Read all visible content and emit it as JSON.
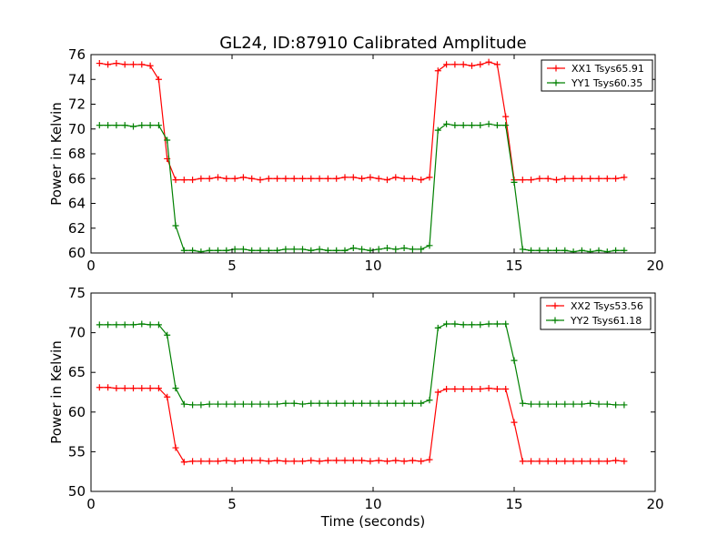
{
  "figure": {
    "title": "GL24, ID:87910 Calibrated Amplitude"
  },
  "chart_data": [
    {
      "type": "line",
      "title": "GL24, ID:87910 Calibrated Amplitude",
      "xlabel": "",
      "ylabel": "Power in Kelvin",
      "xlim": [
        0,
        20
      ],
      "ylim": [
        60,
        76
      ],
      "xticks": [
        0,
        5,
        10,
        15,
        20
      ],
      "yticks": [
        60,
        62,
        64,
        66,
        68,
        70,
        72,
        74,
        76
      ],
      "grid": false,
      "legend_position": "top-right",
      "marker": "+",
      "x": [
        0.3,
        0.6,
        0.9,
        1.2,
        1.5,
        1.8,
        2.1,
        2.4,
        2.7,
        3.0,
        3.3,
        3.6,
        3.9,
        4.2,
        4.5,
        4.8,
        5.1,
        5.4,
        5.7,
        6.0,
        6.3,
        6.6,
        6.9,
        7.2,
        7.5,
        7.8,
        8.1,
        8.4,
        8.7,
        9.0,
        9.3,
        9.6,
        9.9,
        10.2,
        10.5,
        10.8,
        11.1,
        11.4,
        11.7,
        12.0,
        12.3,
        12.6,
        12.9,
        13.2,
        13.5,
        13.8,
        14.1,
        14.4,
        14.7,
        15.0,
        15.3,
        15.6,
        15.9,
        16.2,
        16.5,
        16.8,
        17.1,
        17.4,
        17.7,
        18.0,
        18.3,
        18.6,
        18.9
      ],
      "series": [
        {
          "name": "XX1 Tsys65.91",
          "color": "#ff0000",
          "values": [
            75.3,
            75.2,
            75.3,
            75.2,
            75.2,
            75.2,
            75.1,
            74.0,
            67.6,
            65.9,
            65.9,
            65.9,
            66.0,
            66.0,
            66.1,
            66.0,
            66.0,
            66.1,
            66.0,
            65.9,
            66.0,
            66.0,
            66.0,
            66.0,
            66.0,
            66.0,
            66.0,
            66.0,
            66.0,
            66.1,
            66.1,
            66.0,
            66.1,
            66.0,
            65.9,
            66.1,
            66.0,
            66.0,
            65.9,
            66.1,
            74.7,
            75.2,
            75.2,
            75.2,
            75.1,
            75.2,
            75.4,
            75.2,
            71.0,
            65.9,
            65.9,
            65.9,
            66.0,
            66.0,
            65.9,
            66.0,
            66.0,
            66.0,
            66.0,
            66.0,
            66.0,
            66.0,
            66.1
          ]
        },
        {
          "name": "YY1 Tsys60.35",
          "color": "#008000",
          "values": [
            70.3,
            70.3,
            70.3,
            70.3,
            70.2,
            70.3,
            70.3,
            70.3,
            69.1,
            62.2,
            60.2,
            60.2,
            60.1,
            60.2,
            60.2,
            60.2,
            60.3,
            60.3,
            60.2,
            60.2,
            60.2,
            60.2,
            60.3,
            60.3,
            60.3,
            60.2,
            60.3,
            60.2,
            60.2,
            60.2,
            60.4,
            60.3,
            60.2,
            60.3,
            60.4,
            60.3,
            60.4,
            60.3,
            60.3,
            60.6,
            69.9,
            70.4,
            70.3,
            70.3,
            70.3,
            70.3,
            70.4,
            70.3,
            70.3,
            65.7,
            60.3,
            60.2,
            60.2,
            60.2,
            60.2,
            60.2,
            60.1,
            60.2,
            60.1,
            60.2,
            60.1,
            60.2,
            60.2
          ]
        }
      ]
    },
    {
      "type": "line",
      "title": "",
      "xlabel": "Time (seconds)",
      "ylabel": "Power in Kelvin",
      "xlim": [
        0,
        20
      ],
      "ylim": [
        50,
        75
      ],
      "xticks": [
        0,
        5,
        10,
        15,
        20
      ],
      "yticks": [
        50,
        55,
        60,
        65,
        70,
        75
      ],
      "grid": false,
      "legend_position": "top-right",
      "marker": "+",
      "x": [
        0.3,
        0.6,
        0.9,
        1.2,
        1.5,
        1.8,
        2.1,
        2.4,
        2.7,
        3.0,
        3.3,
        3.6,
        3.9,
        4.2,
        4.5,
        4.8,
        5.1,
        5.4,
        5.7,
        6.0,
        6.3,
        6.6,
        6.9,
        7.2,
        7.5,
        7.8,
        8.1,
        8.4,
        8.7,
        9.0,
        9.3,
        9.6,
        9.9,
        10.2,
        10.5,
        10.8,
        11.1,
        11.4,
        11.7,
        12.0,
        12.3,
        12.6,
        12.9,
        13.2,
        13.5,
        13.8,
        14.1,
        14.4,
        14.7,
        15.0,
        15.3,
        15.6,
        15.9,
        16.2,
        16.5,
        16.8,
        17.1,
        17.4,
        17.7,
        18.0,
        18.3,
        18.6,
        18.9
      ],
      "series": [
        {
          "name": "XX2 Tsys53.56",
          "color": "#ff0000",
          "values": [
            63.1,
            63.1,
            63.0,
            63.0,
            63.0,
            63.0,
            63.0,
            63.0,
            61.9,
            55.5,
            53.7,
            53.8,
            53.8,
            53.8,
            53.8,
            53.9,
            53.8,
            53.9,
            53.9,
            53.9,
            53.8,
            53.9,
            53.8,
            53.8,
            53.8,
            53.9,
            53.8,
            53.9,
            53.9,
            53.9,
            53.9,
            53.9,
            53.8,
            53.9,
            53.8,
            53.9,
            53.8,
            53.9,
            53.8,
            54.0,
            62.5,
            62.9,
            62.9,
            62.9,
            62.9,
            62.9,
            63.0,
            62.9,
            62.9,
            58.7,
            53.8,
            53.8,
            53.8,
            53.8,
            53.8,
            53.8,
            53.8,
            53.8,
            53.8,
            53.8,
            53.8,
            53.9,
            53.8
          ]
        },
        {
          "name": "YY2 Tsys61.18",
          "color": "#008000",
          "values": [
            71.0,
            71.0,
            71.0,
            71.0,
            71.0,
            71.1,
            71.0,
            71.0,
            69.7,
            63.0,
            61.0,
            60.9,
            60.9,
            61.0,
            61.0,
            61.0,
            61.0,
            61.0,
            61.0,
            61.0,
            61.0,
            61.0,
            61.1,
            61.1,
            61.0,
            61.1,
            61.1,
            61.1,
            61.1,
            61.1,
            61.1,
            61.1,
            61.1,
            61.1,
            61.1,
            61.1,
            61.1,
            61.1,
            61.1,
            61.5,
            70.6,
            71.1,
            71.1,
            71.0,
            71.0,
            71.0,
            71.1,
            71.1,
            71.1,
            66.5,
            61.1,
            61.0,
            61.0,
            61.0,
            61.0,
            61.0,
            61.0,
            61.0,
            61.1,
            61.0,
            61.0,
            60.9,
            60.9
          ]
        }
      ]
    }
  ]
}
